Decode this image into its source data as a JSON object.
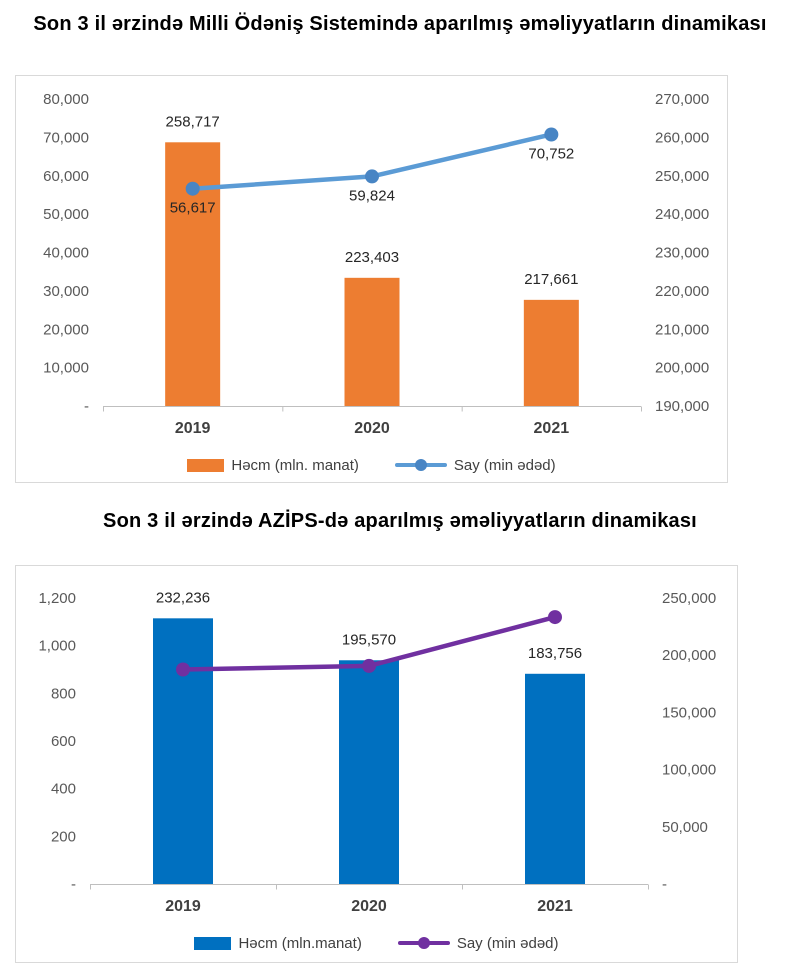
{
  "chart_data": [
    {
      "type": "combo-bar-line",
      "title": "Son 3 il ərzində Milli Ödəniş Sistemində aparılmış əməliyyatların dinamikası",
      "categories": [
        "2019",
        "2020",
        "2021"
      ],
      "series": [
        {
          "name": "Həcm (mln. manat)",
          "type": "bar",
          "axis": "right",
          "color": "#ED7D31",
          "values": [
            258717,
            223403,
            217661
          ],
          "data_labels": [
            "258,717",
            "223,403",
            "217,661"
          ],
          "label_position": "above"
        },
        {
          "name": "Say (min ədəd)",
          "type": "line",
          "axis": "left",
          "color": "#5B9BD5",
          "marker_color": "#4885C4",
          "values": [
            56617,
            59824,
            70752
          ],
          "data_labels": [
            "56,617",
            "59,824",
            "70,752"
          ],
          "label_position": "below"
        }
      ],
      "left_axis": {
        "min": 0,
        "max": 80000,
        "step": 10000,
        "tick_labels": [
          "-",
          "10,000",
          "20,000",
          "30,000",
          "40,000",
          "50,000",
          "60,000",
          "70,000",
          "80,000"
        ]
      },
      "right_axis": {
        "min": 190000,
        "max": 270000,
        "step": 10000,
        "tick_labels": [
          "190,000",
          "200,000",
          "210,000",
          "220,000",
          "230,000",
          "240,000",
          "250,000",
          "260,000",
          "270,000"
        ]
      },
      "legend_position": "bottom",
      "grid": false
    },
    {
      "type": "combo-bar-line",
      "title": "Son 3 il ərzində AZİPS-də aparılmış əməliyyatların dinamikası",
      "categories": [
        "2019",
        "2020",
        "2021"
      ],
      "series": [
        {
          "name": "Həcm (mln.manat)",
          "type": "bar",
          "axis": "right",
          "color": "#0070C0",
          "values": [
            232236,
            195570,
            183756
          ],
          "data_labels": [
            "232,236",
            "195,570",
            "183,756"
          ],
          "label_position": "above"
        },
        {
          "name": "Say (min ədəd)",
          "type": "line",
          "axis": "left",
          "color": "#7030A0",
          "marker_color": "#7030A0",
          "values": [
            900,
            915,
            1120
          ],
          "values_estimated": true,
          "data_labels": null,
          "label_position": "none"
        }
      ],
      "left_axis": {
        "min": 0,
        "max": 1200,
        "step": 200,
        "tick_labels": [
          "-",
          "200",
          "400",
          "600",
          "800",
          "1,000",
          "1,200"
        ]
      },
      "right_axis": {
        "min": 0,
        "max": 250000,
        "step": 50000,
        "tick_labels": [
          "-",
          "50,000",
          "100,000",
          "150,000",
          "200,000",
          "250,000"
        ]
      },
      "legend_position": "bottom",
      "grid": false
    }
  ],
  "style_colors": {
    "axis_line": "#BFBFBF",
    "tick_text": "#595959",
    "category_text": "#404040",
    "data_label_text": "#262626",
    "box_border": "#D9D9D9"
  }
}
